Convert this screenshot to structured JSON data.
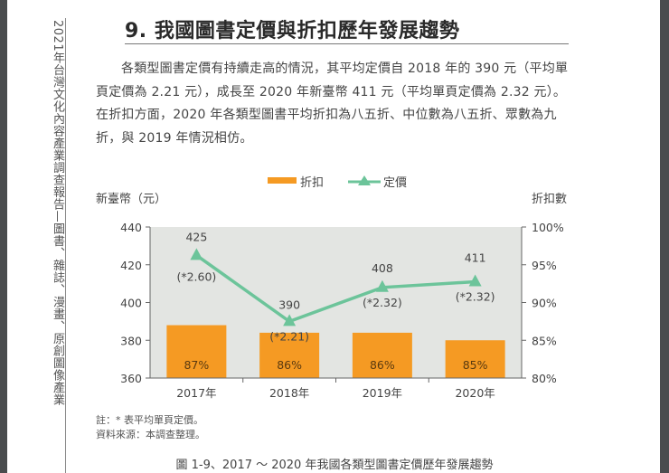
{
  "page": {
    "side_header": "2021年台灣文化內容產業調查報告—圖書、雜誌、漫畫、原創圖像產業",
    "section_title": "9. 我國圖書定價與折扣歷年發展趨勢",
    "paragraph": "各類型圖書定價有持續走高的情況，其平均定價自 2018 年的 390 元（平均單頁定價為 2.21 元），成長至 2020 年新臺幣 411 元（平均單頁定價為 2.32 元）。在折扣方面，2020 年各類型圖書平均折扣為八五折、中位數為八五折、眾數為九折，與 2019 年情況相仿。",
    "note": "註：* 表平均單頁定價。",
    "source": "資料來源：本調查整理。",
    "caption": "圖 1-9、2017 ～ 2020 年我國各類型圖書定價歷年發展趨勢"
  },
  "chart_data": {
    "type": "bar+line",
    "categories": [
      "2017年",
      "2018年",
      "2019年",
      "2020年"
    ],
    "series": [
      {
        "name": "折扣",
        "type": "bar",
        "axis": "right",
        "values": [
          87,
          86,
          86,
          85
        ],
        "labels": [
          "87%",
          "86%",
          "86%",
          "85%"
        ],
        "color": "#f59a23"
      },
      {
        "name": "定價",
        "type": "line",
        "axis": "left",
        "marker": "triangle",
        "values": [
          425,
          390,
          408,
          411
        ],
        "labels": [
          "425",
          "390",
          "408",
          "411"
        ],
        "sub_labels": [
          "(*2.60)",
          "(*2.21)",
          "(*2.32)",
          "(*2.32)"
        ],
        "color": "#6cc49a"
      }
    ],
    "legend": [
      "折扣",
      "定價"
    ],
    "ylabel_left": "新臺幣（元）",
    "ylabel_right": "折扣數",
    "ylim_left": [
      360,
      440
    ],
    "yticks_left": [
      "440",
      "420",
      "400",
      "380",
      "360"
    ],
    "ylim_right": [
      80,
      100
    ],
    "yticks_right": [
      "100%",
      "95%",
      "90%",
      "85%",
      "80%"
    ],
    "background": "#e3e5e2"
  }
}
